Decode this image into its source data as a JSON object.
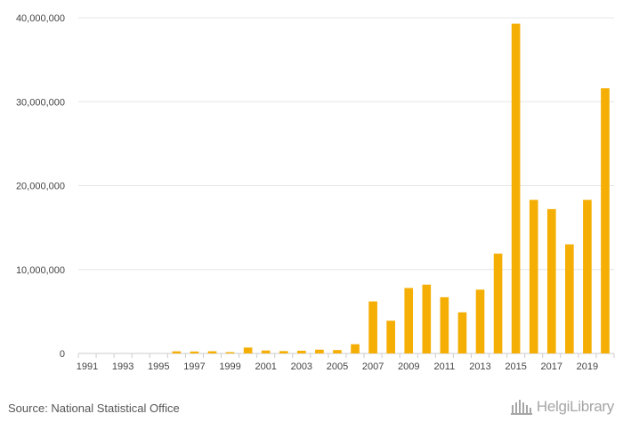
{
  "source": "Source: National Statistical Office",
  "logo_text": "HelgiLibrary",
  "colors": {
    "bar": "#F5AE04",
    "grid": "#e6e6e6",
    "axis": "#cccccc",
    "tick_text": "#444444"
  },
  "chart_data": {
    "type": "bar",
    "title": "",
    "xlabel": "",
    "ylabel": "",
    "ylim": [
      0,
      40000000
    ],
    "y_ticks": [
      0,
      10000000,
      20000000,
      30000000,
      40000000
    ],
    "y_tick_labels": [
      "0",
      "10,000,000",
      "20,000,000",
      "30,000,000",
      "40,000,000"
    ],
    "x_tick_labels": [
      "1991",
      "1993",
      "1995",
      "1997",
      "1999",
      "2001",
      "2003",
      "2005",
      "2007",
      "2009",
      "2011",
      "2013",
      "2015",
      "2017",
      "2019"
    ],
    "grid": true,
    "categories": [
      "1991",
      "1992",
      "1993",
      "1994",
      "1995",
      "1996",
      "1997",
      "1998",
      "1999",
      "2000",
      "2001",
      "2002",
      "2003",
      "2004",
      "2005",
      "2006",
      "2007",
      "2008",
      "2009",
      "2010",
      "2011",
      "2012",
      "2013",
      "2014",
      "2015",
      "2016",
      "2017",
      "2018",
      "2019",
      "2020"
    ],
    "values": [
      0,
      0,
      0,
      0,
      0,
      250000,
      230000,
      260000,
      150000,
      700000,
      350000,
      280000,
      320000,
      450000,
      400000,
      1100000,
      6200000,
      3900000,
      7800000,
      8200000,
      6700000,
      4900000,
      7600000,
      11900000,
      39300000,
      18300000,
      17200000,
      13000000,
      18300000,
      31600000
    ]
  }
}
